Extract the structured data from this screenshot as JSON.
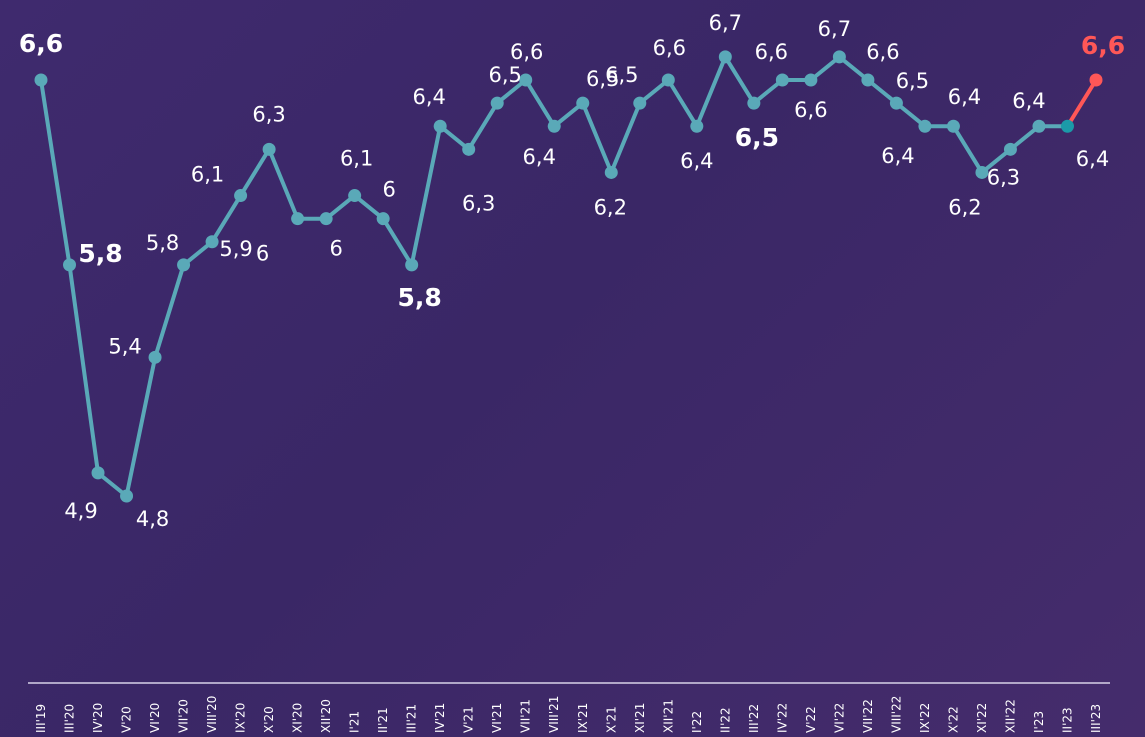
{
  "chart_data": {
    "type": "line",
    "categories": [
      "III'19",
      "III'20",
      "IV'20",
      "V'20",
      "VI'20",
      "VII'20",
      "VIII'20",
      "IX'20",
      "X'20",
      "XI'20",
      "XII'20",
      "I'21",
      "II'21",
      "III'21",
      "IV'21",
      "V'21",
      "VI'21",
      "VII'21",
      "VIII'21",
      "IX'21",
      "X'21",
      "XI'21",
      "XII'21",
      "I'22",
      "II'22",
      "III'22",
      "IV'22",
      "V'22",
      "VI'22",
      "VII'22",
      "VIII'22",
      "IX'22",
      "X'22",
      "XI'22",
      "XII'22",
      "I'23",
      "II'23",
      "III'23"
    ],
    "values": [
      6.6,
      5.8,
      4.9,
      4.8,
      5.4,
      5.8,
      5.9,
      6.1,
      6.3,
      6,
      6,
      6.1,
      6,
      5.8,
      6.4,
      6.3,
      6.5,
      6.6,
      6.4,
      6.5,
      6.2,
      6.5,
      6.6,
      6.4,
      6.7,
      6.5,
      6.6,
      6.6,
      6.7,
      6.6,
      6.5,
      6.4,
      6.4,
      6.2,
      6.3,
      6.4,
      6.4,
      6.6
    ],
    "labels": [
      "6,6",
      "5,8",
      "4,9",
      "4,8",
      "5,4",
      "5,8",
      "5,9",
      "6,1",
      "6,3",
      "6",
      "6",
      "6,1",
      "6",
      "5,8",
      "6,4",
      "6,3",
      "6,5",
      "6,6",
      "6,4",
      "6,5",
      "6,2",
      "6,5",
      "6,6",
      "6,4",
      "6,7",
      "6,5",
      "6,6",
      "6,6",
      "6,7",
      "6,6",
      "6,5",
      "6,4",
      "6,4",
      "6,2",
      "6,3",
      "6,4",
      "6,4",
      "6,6"
    ],
    "emphasis": [
      "bold",
      "bold",
      "normal",
      "normal",
      "normal",
      "normal",
      "normal",
      "normal",
      "normal",
      "normal",
      "normal",
      "normal",
      "normal",
      "bold",
      "normal",
      "normal",
      "normal",
      "normal",
      "normal",
      "normal",
      "normal",
      "normal",
      "normal",
      "normal",
      "normal",
      "bold",
      "normal",
      "normal",
      "normal",
      "normal",
      "normal",
      "normal",
      "normal",
      "normal",
      "normal",
      "normal",
      "normal",
      "accent"
    ],
    "ylim": [
      4.5,
      6.8
    ],
    "grid": false,
    "legend": "none",
    "colors": {
      "line": "#5aa9b8",
      "marker": "#5aa9b8",
      "highlight_marker": "#1b9aa8",
      "last_segment": "#ff5757",
      "label": "#ffffff",
      "accent_label": "#ff5757",
      "axis": "#d8d2e8"
    }
  }
}
